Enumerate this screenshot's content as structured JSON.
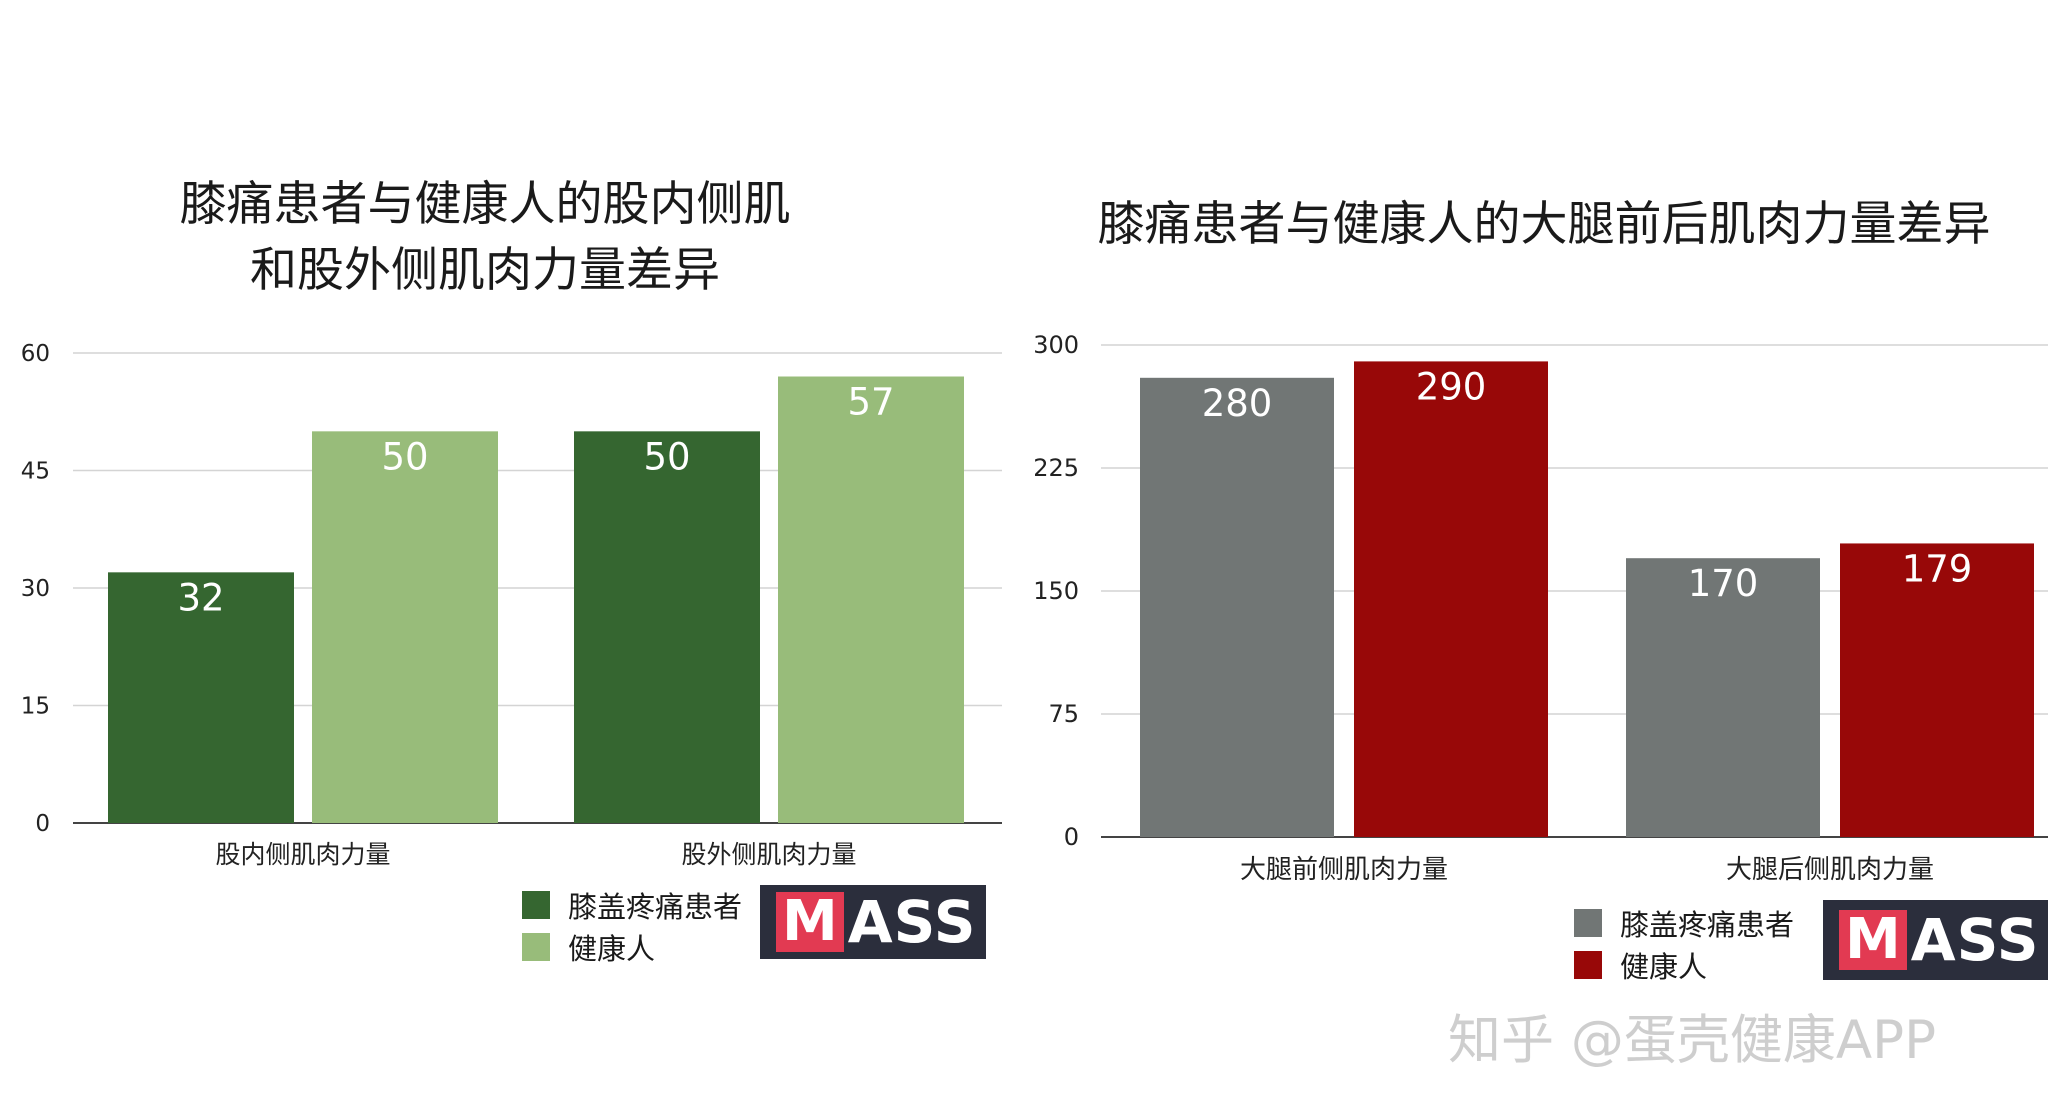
{
  "chart_data": [
    {
      "type": "bar",
      "title_lines": [
        "膝痛患者与健康人的股内侧肌",
        "和股外侧肌肉力量差异"
      ],
      "categories": [
        "股内侧肌肉力量",
        "股外侧肌肉力量"
      ],
      "series": [
        {
          "name": "膝盖疼痛患者",
          "values": [
            32,
            50
          ],
          "color": "#356630"
        },
        {
          "name": "健康人",
          "values": [
            50,
            57
          ],
          "color": "#98bc7a"
        }
      ],
      "ylim": [
        0,
        60
      ],
      "yticks": [
        0,
        15,
        30,
        45,
        60
      ],
      "grid": true,
      "legend_position": "bottom-center",
      "data_labels": true
    },
    {
      "type": "bar",
      "title_lines": [
        "膝痛患者与健康人的大腿前后肌肉力量差异"
      ],
      "categories": [
        "大腿前侧肌肉力量",
        "大腿后侧肌肉力量"
      ],
      "series": [
        {
          "name": "膝盖疼痛患者",
          "values": [
            280,
            170
          ],
          "color": "#717675"
        },
        {
          "name": "健康人",
          "values": [
            290,
            179
          ],
          "color": "#980808"
        }
      ],
      "ylim": [
        0,
        300
      ],
      "yticks": [
        0,
        75,
        150,
        225,
        300
      ],
      "grid": true,
      "legend_position": "bottom-center",
      "data_labels": true
    }
  ],
  "logo": {
    "m": "M",
    "rest": "ASS"
  },
  "watermark": "知乎 @蛋壳健康APP"
}
